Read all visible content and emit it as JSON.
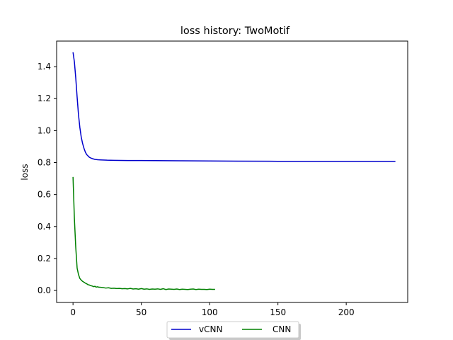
{
  "chart_data": {
    "type": "line",
    "title": "loss history:  TwoMotif",
    "xlabel": "",
    "ylabel": "loss",
    "xlim": [
      -12,
      245
    ],
    "ylim": [
      -0.075,
      1.56
    ],
    "xticks": [
      0,
      50,
      100,
      150,
      200
    ],
    "yticks": [
      0.0,
      0.2,
      0.4,
      0.6,
      0.8,
      1.0,
      1.2,
      1.4
    ],
    "ytick_labels": [
      "0.0",
      "0.2",
      "0.4",
      "0.6",
      "0.8",
      "1.0",
      "1.2",
      "1.4"
    ],
    "grid": false,
    "legend_position": "bottom-center",
    "series": [
      {
        "name": "vCNN",
        "color": "#0000cc",
        "x": [
          0,
          1,
          2,
          3,
          4,
          5,
          6,
          7,
          8,
          9,
          10,
          12,
          14,
          16,
          18,
          20,
          25,
          30,
          40,
          50,
          60,
          80,
          100,
          120,
          150,
          180,
          200,
          220,
          236
        ],
        "y": [
          1.49,
          1.43,
          1.33,
          1.21,
          1.1,
          1.02,
          0.96,
          0.92,
          0.89,
          0.866,
          0.85,
          0.833,
          0.825,
          0.82,
          0.818,
          0.817,
          0.815,
          0.814,
          0.813,
          0.813,
          0.812,
          0.811,
          0.81,
          0.809,
          0.808,
          0.808,
          0.808,
          0.808,
          0.808
        ]
      },
      {
        "name": "CNN",
        "color": "#008000",
        "x": [
          0,
          1,
          2,
          3,
          4,
          5,
          6,
          7,
          8,
          9,
          10,
          11,
          12,
          13,
          14,
          15,
          16,
          17,
          18,
          19,
          20,
          22,
          24,
          26,
          28,
          30,
          32,
          34,
          36,
          38,
          40,
          42,
          44,
          46,
          48,
          50,
          52,
          54,
          56,
          58,
          60,
          62,
          64,
          66,
          68,
          70,
          72,
          74,
          76,
          78,
          80,
          82,
          84,
          86,
          88,
          90,
          92,
          94,
          96,
          98,
          100,
          102,
          104
        ],
        "y": [
          0.71,
          0.45,
          0.27,
          0.14,
          0.1,
          0.075,
          0.065,
          0.057,
          0.052,
          0.046,
          0.042,
          0.036,
          0.034,
          0.03,
          0.028,
          0.024,
          0.026,
          0.021,
          0.023,
          0.02,
          0.02,
          0.018,
          0.015,
          0.017,
          0.013,
          0.014,
          0.012,
          0.013,
          0.011,
          0.012,
          0.01,
          0.013,
          0.009,
          0.011,
          0.008,
          0.012,
          0.008,
          0.01,
          0.007,
          0.009,
          0.008,
          0.01,
          0.007,
          0.011,
          0.006,
          0.009,
          0.008,
          0.007,
          0.009,
          0.006,
          0.008,
          0.007,
          0.006,
          0.008,
          0.009,
          0.006,
          0.008,
          0.007,
          0.007,
          0.006,
          0.008,
          0.007,
          0.007
        ]
      }
    ]
  }
}
